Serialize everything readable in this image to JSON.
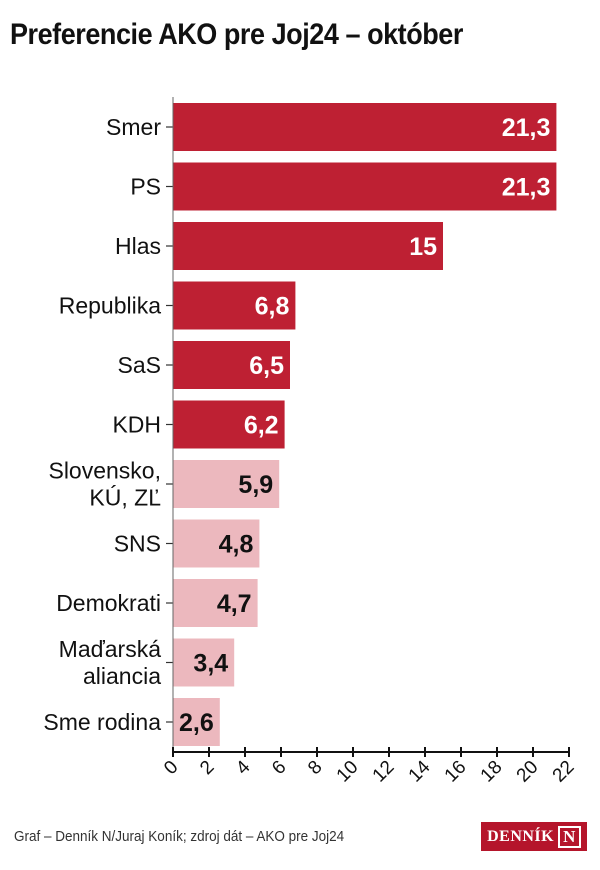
{
  "chart_data": {
    "type": "bar",
    "orientation": "horizontal",
    "title": "Preferencie AKO pre Joj24 – október",
    "categories": [
      "Smer",
      "PS",
      "Hlas",
      "Republika",
      "SaS",
      "KDH",
      "Slovensko,\nKÚ, ZĽ",
      "SNS",
      "Demokrati",
      "Maďarská\naliancia",
      "Sme rodina"
    ],
    "values": [
      21.3,
      21.3,
      15,
      6.8,
      6.5,
      6.2,
      5.9,
      4.8,
      4.7,
      3.4,
      2.6
    ],
    "value_labels": [
      "21,3",
      "21,3",
      "15",
      "6,8",
      "6,5",
      "6,2",
      "5,9",
      "4,8",
      "4,7",
      "3,4",
      "2,6"
    ],
    "highlighted": [
      true,
      true,
      true,
      true,
      true,
      true,
      false,
      false,
      false,
      false,
      false
    ],
    "xlim": [
      0,
      22
    ],
    "xticks": [
      0,
      2,
      4,
      6,
      8,
      10,
      12,
      14,
      16,
      18,
      20,
      22
    ],
    "xlabel": "",
    "ylabel": "",
    "grid": false,
    "colors": {
      "above_threshold": "#be2033",
      "below_threshold": "#ecb8be"
    }
  },
  "footer": {
    "credit": "Graf – Denník N/Juraj Koník; zdroj dát – AKO pre Joj24",
    "logo_text": "DENNÍK N"
  }
}
